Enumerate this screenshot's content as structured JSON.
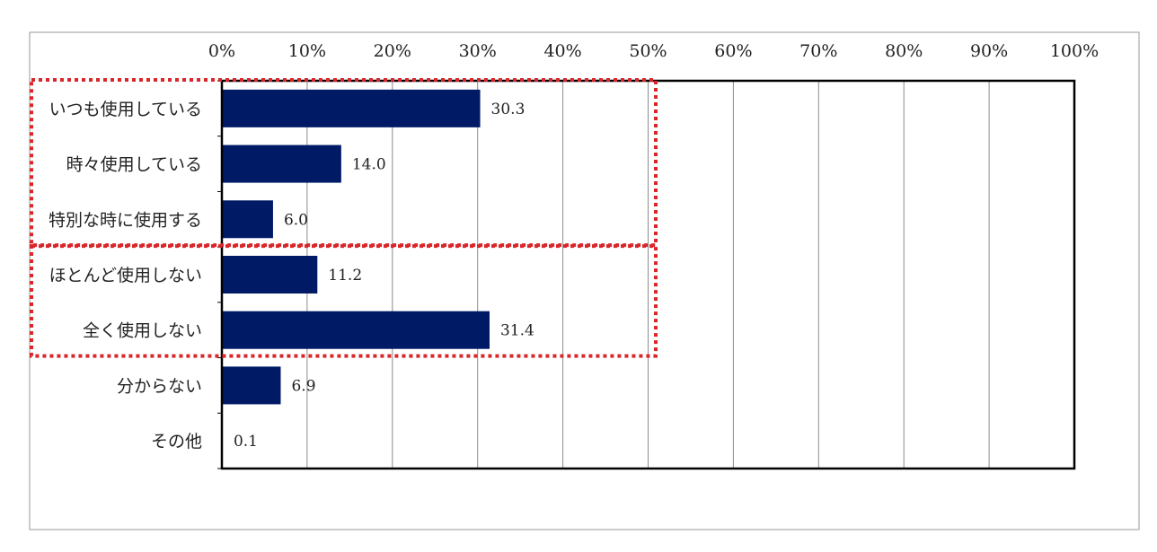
{
  "chart_data": {
    "type": "bar",
    "orientation": "horizontal",
    "categories": [
      "いつも使用している",
      "時々使用している",
      "特別な時に使用する",
      "ほとんど使用しない",
      "全く使用しない",
      "分からない",
      "その他"
    ],
    "values": [
      30.3,
      14.0,
      6.0,
      11.2,
      31.4,
      6.9,
      0.1
    ],
    "value_labels": [
      "30.3",
      "14.0",
      "6.0",
      "11.2",
      "31.4",
      "6.9",
      "0.1"
    ],
    "x_ticks": [
      "0%",
      "10%",
      "20%",
      "30%",
      "40%",
      "50%",
      "60%",
      "70%",
      "80%",
      "90%",
      "100%"
    ],
    "xlim": [
      0,
      100
    ],
    "x_axis_position": "top",
    "grid": true,
    "bar_color": "#001a66",
    "highlight_color": "#d9262a",
    "highlight_groups": [
      {
        "categories": [
          "いつも使用している",
          "時々使用している",
          "特別な時に使用する"
        ]
      },
      {
        "categories": [
          "ほとんど使用しない",
          "全く使用しない"
        ]
      }
    ]
  }
}
